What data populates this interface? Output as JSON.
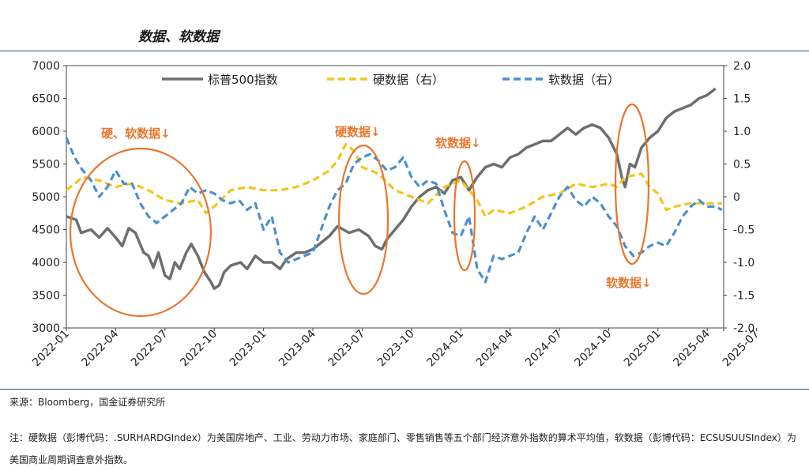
{
  "title": "数据、软数据",
  "source": "来源：Bloomberg，国金证券研究所",
  "note": "注：硬数据（彭博代码：.SURHARDGIndex）为美国房地产、工业、劳动力市场、家庭部门、零售销售等五个部门经济意外指数的算术平均值，软数据（彭博代码：ECSUSUUSIndex）为美国商业周期调查意外指数。",
  "colors": {
    "spx": "#6e6e6e",
    "hard": "#f5c518",
    "soft": "#4a90d0",
    "annot": "#e8772e"
  },
  "chart_data": {
    "type": "line",
    "x": [
      "2022-01",
      "2022-04",
      "2022-07",
      "2022-10",
      "2023-01",
      "2023-04",
      "2023-07",
      "2023-10",
      "2024-01",
      "2024-04",
      "2024-07",
      "2024-10",
      "2025-01",
      "2025-04",
      "2025-07"
    ],
    "x_end": "2025-10",
    "y_left": {
      "ylim": [
        3000,
        7000
      ],
      "ticks": [
        "3000",
        "3500",
        "4000",
        "4500",
        "5000",
        "5500",
        "6000",
        "6500",
        "7000"
      ]
    },
    "y_right": {
      "ylim": [
        -2.0,
        2.0
      ],
      "ticks": [
        "-2.0",
        "-1.5",
        "-1.0",
        "-0.5",
        "0",
        "0.5",
        "1.0",
        "1.5",
        "2.0"
      ]
    },
    "series": [
      {
        "name": "标普500指数",
        "axis": "left",
        "style": "solid",
        "points": [
          [
            0,
            4700
          ],
          [
            0.6,
            4650
          ],
          [
            0.9,
            4450
          ],
          [
            1.5,
            4500
          ],
          [
            2,
            4380
          ],
          [
            2.5,
            4520
          ],
          [
            3,
            4380
          ],
          [
            3.4,
            4250
          ],
          [
            3.8,
            4520
          ],
          [
            4.2,
            4450
          ],
          [
            4.7,
            4150
          ],
          [
            5.0,
            4100
          ],
          [
            5.3,
            3920
          ],
          [
            5.6,
            4150
          ],
          [
            6.0,
            3800
          ],
          [
            6.3,
            3750
          ],
          [
            6.6,
            4000
          ],
          [
            6.9,
            3900
          ],
          [
            7.3,
            4150
          ],
          [
            7.6,
            4280
          ],
          [
            8.0,
            4100
          ],
          [
            8.4,
            3850
          ],
          [
            8.8,
            3700
          ],
          [
            9.0,
            3600
          ],
          [
            9.3,
            3650
          ],
          [
            9.6,
            3850
          ],
          [
            10.0,
            3950
          ],
          [
            10.6,
            4000
          ],
          [
            11.0,
            3900
          ],
          [
            11.5,
            4100
          ],
          [
            12.0,
            4000
          ],
          [
            12.5,
            4000
          ],
          [
            13.0,
            3900
          ],
          [
            13.4,
            4050
          ],
          [
            14.0,
            4150
          ],
          [
            14.5,
            4150
          ],
          [
            15.0,
            4200
          ],
          [
            15.5,
            4300
          ],
          [
            16.0,
            4400
          ],
          [
            16.5,
            4550
          ],
          [
            17.2,
            4450
          ],
          [
            17.8,
            4500
          ],
          [
            18.4,
            4400
          ],
          [
            18.8,
            4250
          ],
          [
            19.2,
            4200
          ],
          [
            19.5,
            4350
          ],
          [
            20.0,
            4500
          ],
          [
            20.5,
            4650
          ],
          [
            21.0,
            4850
          ],
          [
            21.5,
            5000
          ],
          [
            22.0,
            5100
          ],
          [
            22.5,
            5150
          ],
          [
            23.0,
            5050
          ],
          [
            23.5,
            5250
          ],
          [
            24.0,
            5300
          ],
          [
            24.5,
            5100
          ],
          [
            25.0,
            5300
          ],
          [
            25.5,
            5450
          ],
          [
            26.0,
            5500
          ],
          [
            26.5,
            5450
          ],
          [
            27.0,
            5600
          ],
          [
            27.5,
            5650
          ],
          [
            28.0,
            5750
          ],
          [
            28.5,
            5800
          ],
          [
            29.0,
            5850
          ],
          [
            29.5,
            5850
          ],
          [
            30.0,
            5950
          ],
          [
            30.5,
            6050
          ],
          [
            31.0,
            5950
          ],
          [
            31.5,
            6050
          ],
          [
            32.0,
            6100
          ],
          [
            32.5,
            6050
          ],
          [
            33.0,
            5900
          ],
          [
            33.5,
            5650
          ],
          [
            33.8,
            5300
          ],
          [
            34.0,
            5150
          ],
          [
            34.3,
            5500
          ],
          [
            34.6,
            5450
          ],
          [
            35.0,
            5750
          ],
          [
            35.5,
            5900
          ],
          [
            36.0,
            6000
          ],
          [
            36.5,
            6200
          ],
          [
            37.0,
            6300
          ],
          [
            37.5,
            6350
          ],
          [
            38.0,
            6400
          ],
          [
            38.5,
            6500
          ],
          [
            39.0,
            6550
          ],
          [
            39.5,
            6650
          ]
        ]
      },
      {
        "name": "硬数据（右）",
        "axis": "right",
        "style": "dashed",
        "points": [
          [
            0,
            0.1
          ],
          [
            1,
            0.3
          ],
          [
            2,
            0.25
          ],
          [
            3,
            0.15
          ],
          [
            4,
            0.2
          ],
          [
            5,
            0.1
          ],
          [
            6,
            -0.05
          ],
          [
            7,
            -0.1
          ],
          [
            8,
            -0.05
          ],
          [
            8.5,
            -0.25
          ],
          [
            9,
            -0.15
          ],
          [
            10,
            0.1
          ],
          [
            11,
            0.15
          ],
          [
            12,
            0.1
          ],
          [
            13,
            0.1
          ],
          [
            14,
            0.15
          ],
          [
            15,
            0.25
          ],
          [
            16,
            0.4
          ],
          [
            16.5,
            0.55
          ],
          [
            17,
            0.8
          ],
          [
            17.5,
            0.7
          ],
          [
            18,
            0.45
          ],
          [
            19,
            0.35
          ],
          [
            20,
            0.1
          ],
          [
            21,
            0
          ],
          [
            22,
            -0.1
          ],
          [
            23,
            0.15
          ],
          [
            24,
            0.25
          ],
          [
            24.5,
            0.1
          ],
          [
            25,
            -0.05
          ],
          [
            25.5,
            -0.3
          ],
          [
            26,
            -0.2
          ],
          [
            27,
            -0.25
          ],
          [
            28,
            -0.15
          ],
          [
            29,
            0
          ],
          [
            30,
            0.05
          ],
          [
            31,
            0.2
          ],
          [
            32,
            0.15
          ],
          [
            33,
            0.2
          ],
          [
            33.5,
            0.15
          ],
          [
            34,
            0.3
          ],
          [
            35,
            0.35
          ],
          [
            35.5,
            0.15
          ],
          [
            36,
            0.05
          ],
          [
            36.5,
            -0.2
          ],
          [
            37,
            -0.15
          ],
          [
            38,
            -0.1
          ],
          [
            39,
            -0.1
          ],
          [
            39.9,
            -0.1
          ]
        ]
      },
      {
        "name": "软数据（右）",
        "axis": "right",
        "style": "dashed",
        "points": [
          [
            0,
            0.9
          ],
          [
            0.5,
            0.6
          ],
          [
            1,
            0.4
          ],
          [
            1.5,
            0.25
          ],
          [
            2,
            0
          ],
          [
            2.5,
            0.15
          ],
          [
            3,
            0.4
          ],
          [
            3.5,
            0.2
          ],
          [
            4,
            0.2
          ],
          [
            4.5,
            -0.1
          ],
          [
            5,
            -0.3
          ],
          [
            5.5,
            -0.4
          ],
          [
            6,
            -0.3
          ],
          [
            6.5,
            -0.2
          ],
          [
            7,
            -0.1
          ],
          [
            7.5,
            0.15
          ],
          [
            8,
            0.05
          ],
          [
            8.5,
            0.1
          ],
          [
            9,
            0.05
          ],
          [
            9.5,
            -0.05
          ],
          [
            10,
            -0.1
          ],
          [
            10.5,
            -0.05
          ],
          [
            11,
            -0.2
          ],
          [
            11.5,
            -0.1
          ],
          [
            12,
            -0.5
          ],
          [
            12.5,
            -0.3
          ],
          [
            13,
            -0.85
          ],
          [
            13.5,
            -1.0
          ],
          [
            14,
            -0.95
          ],
          [
            14.5,
            -0.9
          ],
          [
            15,
            -0.85
          ],
          [
            15.5,
            -0.5
          ],
          [
            16,
            -0.15
          ],
          [
            16.5,
            0.1
          ],
          [
            17,
            0.2
          ],
          [
            17.5,
            0.5
          ],
          [
            18,
            0.6
          ],
          [
            18.5,
            0.65
          ],
          [
            19,
            0.55
          ],
          [
            19.5,
            0.4
          ],
          [
            20,
            0.45
          ],
          [
            20.5,
            0.6
          ],
          [
            21,
            0.3
          ],
          [
            21.5,
            0.15
          ],
          [
            22,
            0.25
          ],
          [
            22.5,
            0.2
          ],
          [
            23,
            -0.2
          ],
          [
            23.5,
            -0.55
          ],
          [
            24,
            -0.6
          ],
          [
            24.5,
            -0.3
          ],
          [
            25,
            -1.1
          ],
          [
            25.5,
            -1.3
          ],
          [
            26,
            -0.9
          ],
          [
            26.5,
            -0.95
          ],
          [
            27,
            -0.9
          ],
          [
            27.5,
            -0.85
          ],
          [
            28,
            -0.55
          ],
          [
            28.5,
            -0.3
          ],
          [
            29,
            -0.5
          ],
          [
            29.5,
            -0.25
          ],
          [
            30,
            0
          ],
          [
            30.5,
            0.15
          ],
          [
            31,
            -0.05
          ],
          [
            31.5,
            -0.15
          ],
          [
            32,
            0
          ],
          [
            32.5,
            -0.1
          ],
          [
            33,
            -0.3
          ],
          [
            33.5,
            -0.45
          ],
          [
            34,
            -0.75
          ],
          [
            34.5,
            -0.9
          ],
          [
            35,
            -0.85
          ],
          [
            35.5,
            -0.75
          ],
          [
            36,
            -0.7
          ],
          [
            36.5,
            -0.75
          ],
          [
            37,
            -0.55
          ],
          [
            37.5,
            -0.3
          ],
          [
            38,
            -0.15
          ],
          [
            38.5,
            -0.05
          ],
          [
            39,
            -0.15
          ],
          [
            39.5,
            -0.15
          ],
          [
            39.9,
            -0.2
          ]
        ]
      }
    ],
    "annotations": [
      {
        "text": "硬、软数据↓",
        "index": 3.5
      },
      {
        "text": "硬数据↓",
        "index": 17.8
      },
      {
        "text": "软数据↓",
        "index": 24.2
      },
      {
        "text": "软数据↓",
        "index": 33.4
      }
    ]
  }
}
